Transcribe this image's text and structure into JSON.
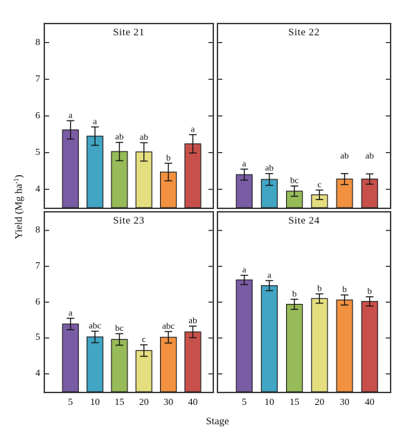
{
  "chart_data": {
    "type": "bar",
    "layout": "2x2 small multiples, shared x and y axes",
    "title": "",
    "xlabel": "Stage",
    "ylabel": "Yield (Mg ha⁻¹)",
    "ylabel_parts": {
      "prefix": "Yield (Mg ha",
      "sup": "-1",
      "suffix": ")"
    },
    "categories": [
      "5",
      "10",
      "15",
      "20",
      "30",
      "40"
    ],
    "ylim": [
      3.5,
      8.5
    ],
    "yticks": [
      4,
      5,
      6,
      7,
      8
    ],
    "grid": false,
    "legend": "none",
    "bar_colors": [
      "#7A5CA5",
      "#42A5C3",
      "#97BB58",
      "#E5DE7F",
      "#F29140",
      "#C8504B"
    ],
    "panels": [
      {
        "title": "Site 21",
        "values": [
          5.62,
          5.45,
          5.03,
          5.02,
          4.47,
          5.24
        ],
        "errors": [
          0.25,
          0.25,
          0.25,
          0.25,
          0.24,
          0.25
        ],
        "letters": [
          "a",
          "a",
          "ab",
          "ab",
          "b",
          "a"
        ],
        "letter_y": [
          null,
          null,
          null,
          null,
          null,
          null
        ]
      },
      {
        "title": "Site 22",
        "values": [
          4.4,
          4.27,
          3.95,
          3.85,
          4.28,
          4.28
        ],
        "errors": [
          0.15,
          0.16,
          0.14,
          0.13,
          0.15,
          0.14
        ],
        "letters": [
          "a",
          "ab",
          "bc",
          "c",
          "ab",
          "ab"
        ],
        "letter_y": [
          null,
          null,
          null,
          null,
          4.93,
          4.93
        ]
      },
      {
        "title": "Site 23",
        "values": [
          5.39,
          5.03,
          4.96,
          4.65,
          5.02,
          5.17
        ],
        "errors": [
          0.16,
          0.16,
          0.16,
          0.16,
          0.16,
          0.16
        ],
        "letters": [
          "a",
          "abc",
          "bc",
          "c",
          "abc",
          "ab"
        ],
        "letter_y": [
          null,
          null,
          null,
          null,
          null,
          null
        ]
      },
      {
        "title": "Site 24",
        "values": [
          6.62,
          6.46,
          5.94,
          6.1,
          6.06,
          6.02
        ],
        "errors": [
          0.13,
          0.14,
          0.14,
          0.13,
          0.14,
          0.13
        ],
        "letters": [
          "a",
          "a",
          "b",
          "b",
          "b",
          "b"
        ],
        "letter_y": [
          null,
          null,
          null,
          null,
          null,
          null
        ]
      }
    ]
  },
  "style": {
    "background": "#FFFFFF",
    "panel_border": "#3E3E3E",
    "bar_border": "#222222",
    "axis_color": "#111111",
    "text_color": "#111111"
  }
}
